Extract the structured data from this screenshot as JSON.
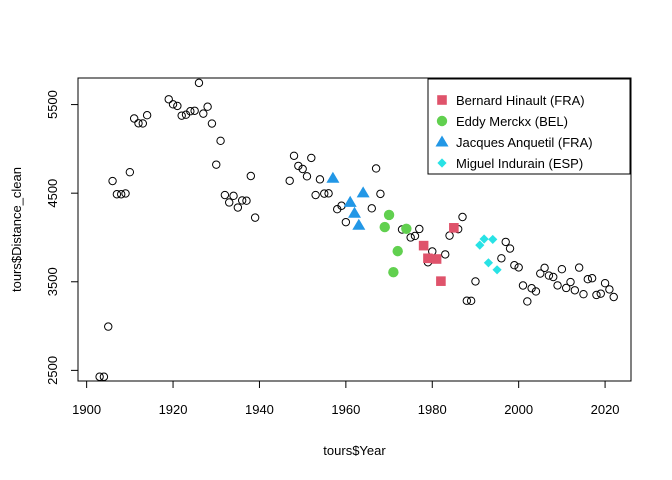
{
  "chart_data": {
    "type": "scatter",
    "xlabel": "tours$Year",
    "ylabel": "tours$Distance_clean",
    "xlim": [
      1898,
      2026
    ],
    "ylim": [
      2380,
      5800
    ],
    "x_ticks": [
      1900,
      1920,
      1940,
      1960,
      1980,
      2000,
      2020
    ],
    "y_ticks": [
      2500,
      3500,
      4500,
      5500
    ],
    "grid": false,
    "legend_position": "top-right",
    "base_series": {
      "marker": "open-circle",
      "color": "#000000",
      "points": [
        [
          1903,
          2428
        ],
        [
          1904,
          2428
        ],
        [
          1905,
          2994
        ],
        [
          1906,
          4637
        ],
        [
          1907,
          4488
        ],
        [
          1908,
          4488
        ],
        [
          1909,
          4497
        ],
        [
          1910,
          4737
        ],
        [
          1911,
          5343
        ],
        [
          1912,
          5289
        ],
        [
          1913,
          5287
        ],
        [
          1914,
          5380
        ],
        [
          1919,
          5560
        ],
        [
          1920,
          5503
        ],
        [
          1921,
          5485
        ],
        [
          1922,
          5375
        ],
        [
          1923,
          5386
        ],
        [
          1924,
          5425
        ],
        [
          1925,
          5430
        ],
        [
          1926,
          5745
        ],
        [
          1927,
          5398
        ],
        [
          1928,
          5476
        ],
        [
          1929,
          5286
        ],
        [
          1930,
          4822
        ],
        [
          1931,
          5091
        ],
        [
          1932,
          4479
        ],
        [
          1933,
          4395
        ],
        [
          1934,
          4470
        ],
        [
          1935,
          4338
        ],
        [
          1936,
          4418
        ],
        [
          1937,
          4415
        ],
        [
          1938,
          4694
        ],
        [
          1939,
          4224
        ],
        [
          1947,
          4640
        ],
        [
          1948,
          4922
        ],
        [
          1949,
          4808
        ],
        [
          1950,
          4773
        ],
        [
          1951,
          4690
        ],
        [
          1952,
          4898
        ],
        [
          1953,
          4479
        ],
        [
          1954,
          4656
        ],
        [
          1955,
          4495
        ],
        [
          1956,
          4498
        ],
        [
          1958,
          4319
        ],
        [
          1959,
          4358
        ],
        [
          1960,
          4173
        ],
        [
          1966,
          4329
        ],
        [
          1967,
          4779
        ],
        [
          1968,
          4492
        ],
        [
          1972,
          3846
        ],
        [
          1973,
          4090
        ],
        [
          1975,
          4000
        ],
        [
          1976,
          4017
        ],
        [
          1977,
          4096
        ],
        [
          1979,
          3720
        ],
        [
          1980,
          3842
        ],
        [
          1983,
          3809
        ],
        [
          1984,
          4021
        ],
        [
          1986,
          4094
        ],
        [
          1987,
          4231
        ],
        [
          1988,
          3286
        ],
        [
          1989,
          3285
        ],
        [
          1990,
          3504
        ],
        [
          1996,
          3765
        ],
        [
          1997,
          3950
        ],
        [
          1998,
          3875
        ],
        [
          1999,
          3687
        ],
        [
          2000,
          3662
        ],
        [
          2001,
          3458
        ],
        [
          2002,
          3278
        ],
        [
          2003,
          3427
        ],
        [
          2004,
          3391
        ],
        [
          2005,
          3593
        ],
        [
          2006,
          3657
        ],
        [
          2007,
          3570
        ],
        [
          2008,
          3554
        ],
        [
          2009,
          3459
        ],
        [
          2010,
          3642
        ],
        [
          2011,
          3430
        ],
        [
          2012,
          3497
        ],
        [
          2013,
          3404
        ],
        [
          2014,
          3660
        ],
        [
          2015,
          3360
        ],
        [
          2016,
          3529
        ],
        [
          2017,
          3540
        ],
        [
          2018,
          3351
        ],
        [
          2019,
          3366
        ],
        [
          2020,
          3484
        ],
        [
          2021,
          3414
        ],
        [
          2022,
          3328
        ]
      ]
    },
    "series": [
      {
        "name": "Bernard Hinault (FRA)",
        "marker": "square",
        "color": "#DF536B",
        "points": [
          [
            1978,
            3908
          ],
          [
            1979,
            3765
          ],
          [
            1981,
            3757
          ],
          [
            1982,
            3507
          ],
          [
            1985,
            4109
          ]
        ]
      },
      {
        "name": "Eddy Merckx (BEL)",
        "marker": "circle",
        "color": "#61D04F",
        "points": [
          [
            1969,
            4117
          ],
          [
            1970,
            4254
          ],
          [
            1971,
            3608
          ],
          [
            1972,
            3846
          ],
          [
            1974,
            4098
          ]
        ]
      },
      {
        "name": "Jacques Anquetil (FRA)",
        "marker": "triangle",
        "color": "#2297E6",
        "points": [
          [
            1957,
            4669
          ],
          [
            1961,
            4397
          ],
          [
            1962,
            4274
          ],
          [
            1963,
            4138
          ],
          [
            1964,
            4504
          ]
        ]
      },
      {
        "name": "Miguel Indurain (ESP)",
        "marker": "diamond",
        "color": "#28E2E5",
        "points": [
          [
            1991,
            3914
          ],
          [
            1992,
            3983
          ],
          [
            1993,
            3714
          ],
          [
            1994,
            3978
          ],
          [
            1995,
            3635
          ]
        ]
      }
    ]
  }
}
